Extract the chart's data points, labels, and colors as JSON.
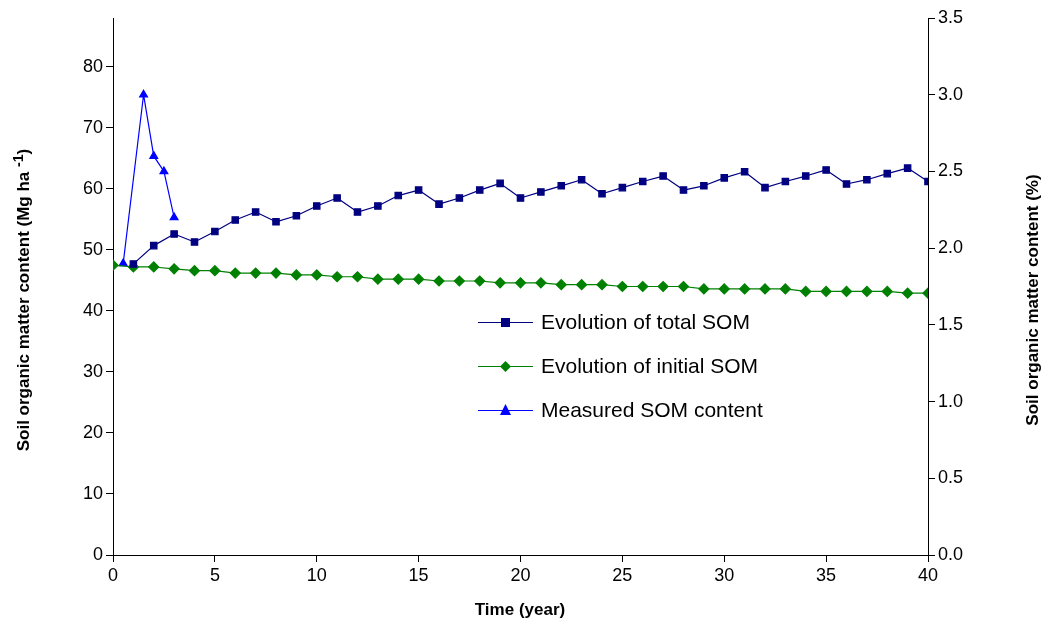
{
  "chart_data": {
    "type": "line",
    "xlabel": "Time (year)",
    "ylabel": "Soil organic matter content (Mg ha $^{-1}$)",
    "y2label": "Soil organic matter content (%)",
    "xlim": [
      0,
      40
    ],
    "xticks": [
      0,
      5,
      10,
      15,
      20,
      25,
      30,
      35,
      40
    ],
    "ylim": [
      0,
      88
    ],
    "yticks": [
      0,
      10,
      20,
      30,
      40,
      50,
      60,
      70,
      80
    ],
    "y2lim": [
      0,
      3.5
    ],
    "y2ticks": [
      {
        "value": 0,
        "label": "0.0"
      },
      {
        "value": 0.5,
        "label": "0.5"
      },
      {
        "value": 1,
        "label": "1.0"
      },
      {
        "value": 1.5,
        "label": "1.5"
      },
      {
        "value": 2,
        "label": "2.0"
      },
      {
        "value": 2.5,
        "label": "2.5"
      },
      {
        "value": 3,
        "label": "3.0"
      },
      {
        "value": 3.5,
        "label": "3.5"
      }
    ],
    "grid": false,
    "legend": "right",
    "line_style": "solid",
    "series": [
      {
        "name": "Evolution of total SOM",
        "color": "#000080",
        "marker": "square",
        "x": [
          1,
          2,
          3,
          4,
          5,
          6,
          7,
          8,
          9,
          10,
          11,
          12,
          13,
          14,
          15,
          16,
          17,
          18,
          19,
          20,
          21,
          22,
          23,
          24,
          25,
          26,
          27,
          28,
          29,
          30,
          31,
          32,
          33,
          34,
          35,
          36,
          37,
          38,
          39,
          40
        ],
        "values": [
          47.7,
          50.7,
          52.6,
          51.3,
          53.0,
          54.9,
          56.2,
          54.6,
          55.6,
          57.2,
          58.5,
          56.2,
          57.2,
          58.9,
          59.8,
          57.5,
          58.5,
          59.8,
          60.9,
          58.5,
          59.5,
          60.5,
          61.5,
          59.2,
          60.2,
          61.2,
          62.1,
          59.8,
          60.5,
          61.8,
          62.8,
          60.2,
          61.2,
          62.1,
          63.1,
          60.8,
          61.5,
          62.5,
          63.4,
          61.2
        ]
      },
      {
        "name": "Evolution of initial SOM",
        "color": "#008000",
        "marker": "diamond",
        "x": [
          0,
          1,
          2,
          3,
          4,
          5,
          6,
          7,
          8,
          9,
          10,
          11,
          12,
          13,
          14,
          15,
          16,
          17,
          18,
          19,
          20,
          21,
          22,
          23,
          24,
          25,
          26,
          27,
          28,
          29,
          30,
          31,
          32,
          33,
          34,
          35,
          36,
          37,
          38,
          39,
          40
        ],
        "values": [
          47.5,
          47.2,
          47.2,
          46.9,
          46.6,
          46.6,
          46.2,
          46.2,
          46.2,
          45.9,
          45.9,
          45.6,
          45.6,
          45.2,
          45.2,
          45.2,
          44.9,
          44.9,
          44.9,
          44.6,
          44.6,
          44.6,
          44.3,
          44.3,
          44.3,
          44.0,
          44.0,
          44.0,
          44.0,
          43.6,
          43.6,
          43.6,
          43.6,
          43.6,
          43.2,
          43.2,
          43.2,
          43.2,
          43.2,
          42.9,
          42.9
        ]
      },
      {
        "name": "Measured SOM content",
        "color": "#0000ff",
        "marker": "triangle",
        "axis": "y2",
        "x": [
          0.5,
          1.5,
          2,
          2.5,
          3
        ],
        "values": [
          1.9,
          3.0,
          2.6,
          2.5,
          2.2
        ]
      }
    ]
  }
}
